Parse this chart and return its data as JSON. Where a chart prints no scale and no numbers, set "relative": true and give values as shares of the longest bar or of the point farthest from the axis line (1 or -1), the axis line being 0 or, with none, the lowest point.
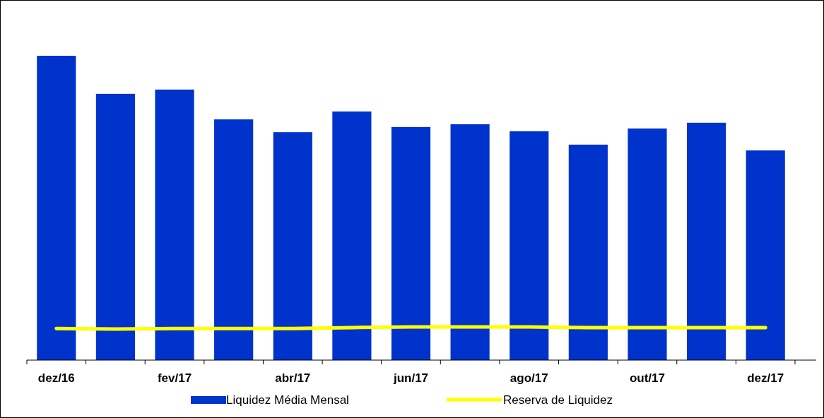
{
  "chart_data": {
    "type": "bar",
    "relative": true,
    "categories": [
      "dez/16",
      null,
      "fev/17",
      null,
      "abr/17",
      null,
      "jun/17",
      null,
      "ago/17",
      null,
      "out/17",
      null,
      "dez/17"
    ],
    "series": [
      {
        "name": "Liquidez Média Mensal",
        "color": "#0033cc",
        "values": [
          1,
          0.875,
          0.889,
          0.791,
          0.749,
          0.817,
          0.766,
          0.775,
          0.752,
          0.708,
          0.761,
          0.78,
          0.689
        ]
      },
      {
        "name": "Reserva de Liquidez",
        "type": "line",
        "color": "#ffff00",
        "values": [
          0.104,
          0.102,
          0.104,
          0.104,
          0.104,
          0.107,
          0.109,
          0.109,
          0.109,
          0.107,
          0.107,
          0.107,
          0.107
        ]
      }
    ],
    "legend": "bottom"
  }
}
